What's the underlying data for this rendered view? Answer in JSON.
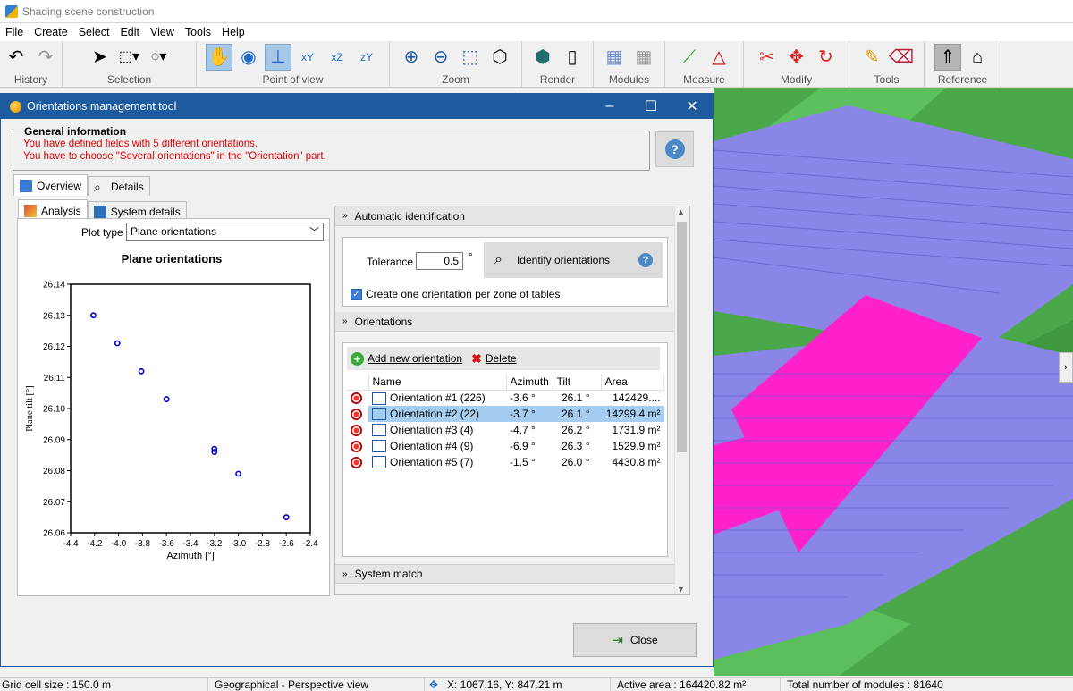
{
  "app": {
    "title": "Shading scene construction"
  },
  "menu": [
    "File",
    "Create",
    "Select",
    "Edit",
    "View",
    "Tools",
    "Help"
  ],
  "toolbar": {
    "groups": [
      "History",
      "Selection",
      "Point of view",
      "Zoom",
      "Render",
      "Modules",
      "Measure",
      "Modify",
      "Tools",
      "Reference"
    ]
  },
  "dialog": {
    "title": "Orientations management tool",
    "general_info": {
      "legend": "General information",
      "line1": "You have defined fields with 5 different orientations.",
      "line2": "You have to choose \"Several orientations\" in the \"Orientation\" part."
    },
    "tabs": [
      "Overview",
      "Details"
    ],
    "subtabs": [
      "Analysis",
      "System details"
    ],
    "plot_type_label": "Plot type",
    "plot_type_value": "Plane orientations",
    "auto_ident": {
      "header": "Automatic identification",
      "tolerance_label": "Tolerance",
      "tolerance_value": "0.5",
      "tolerance_unit": "°",
      "identify_label": "Identify orientations",
      "checkbox_label": "Create one orientation per zone of tables"
    },
    "orientations": {
      "header": "Orientations",
      "add_label": "Add new orientation",
      "delete_label": "Delete",
      "columns": [
        "Name",
        "Azimuth",
        "Tilt",
        "Area"
      ],
      "rows": [
        {
          "name": "Orientation #1 (226)",
          "azimuth": "-3.6 °",
          "tilt": "26.1 °",
          "area": "142429...."
        },
        {
          "name": "Orientation #2 (22)",
          "azimuth": "-3.7 °",
          "tilt": "26.1 °",
          "area": "14299.4 m²"
        },
        {
          "name": "Orientation #3 (4)",
          "azimuth": "-4.7 °",
          "tilt": "26.2 °",
          "area": "1731.9 m²"
        },
        {
          "name": "Orientation #4 (9)",
          "azimuth": "-6.9 °",
          "tilt": "26.3 °",
          "area": "1529.9 m²"
        },
        {
          "name": "Orientation #5 (7)",
          "azimuth": "-1.5 °",
          "tilt": "26.0 °",
          "area": "4430.8 m²"
        }
      ]
    },
    "system_match_header": "System match",
    "close_label": "Close"
  },
  "status": {
    "grid": "Grid cell size : 150.0 m",
    "view": "Geographical - Perspective view",
    "coords": "X: 1067.16, Y: 847.21 m",
    "active_area": "Active area : 164420.82 m²",
    "total_modules": "Total number of modules : 81640"
  },
  "chart_data": {
    "type": "scatter",
    "title": "Plane orientations",
    "xlabel": "Azimuth [°]",
    "ylabel": "Plane tilt [°]",
    "xlim": [
      -4.4,
      -2.4
    ],
    "ylim": [
      26.06,
      26.14
    ],
    "xticks": [
      "-4.4",
      "-4.2",
      "-4.0",
      "-3.8",
      "-3.6",
      "-3.4",
      "-3.2",
      "-3.0",
      "-2.8",
      "-2.6",
      "-2.4"
    ],
    "yticks": [
      "26.06",
      "26.07",
      "26.08",
      "26.09",
      "26.10",
      "26.11",
      "26.12",
      "26.13",
      "26.14"
    ],
    "points": [
      {
        "x": -4.21,
        "y": 26.13
      },
      {
        "x": -4.01,
        "y": 26.121
      },
      {
        "x": -3.81,
        "y": 26.112
      },
      {
        "x": -3.6,
        "y": 26.103
      },
      {
        "x": -3.2,
        "y": 26.087
      },
      {
        "x": -3.2,
        "y": 26.086
      },
      {
        "x": -3.0,
        "y": 26.079
      },
      {
        "x": -2.6,
        "y": 26.065
      }
    ],
    "marker_color": "#0000cc",
    "grid": false
  }
}
